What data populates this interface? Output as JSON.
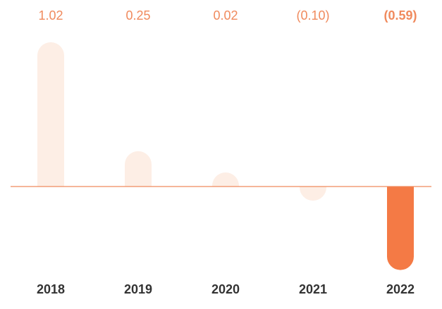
{
  "chart_data": {
    "type": "bar",
    "categories": [
      "2018",
      "2019",
      "2020",
      "2021",
      "2022"
    ],
    "values": [
      1.02,
      0.25,
      0.02,
      -0.1,
      -0.59
    ],
    "value_labels": [
      "1.02",
      "0.25",
      "0.02",
      "(0.10)",
      "(0.59)"
    ],
    "colors": [
      "#fdeee5",
      "#fdeee5",
      "#fdeee5",
      "#fdeee5",
      "#f47a45"
    ],
    "highlight": 4
  }
}
